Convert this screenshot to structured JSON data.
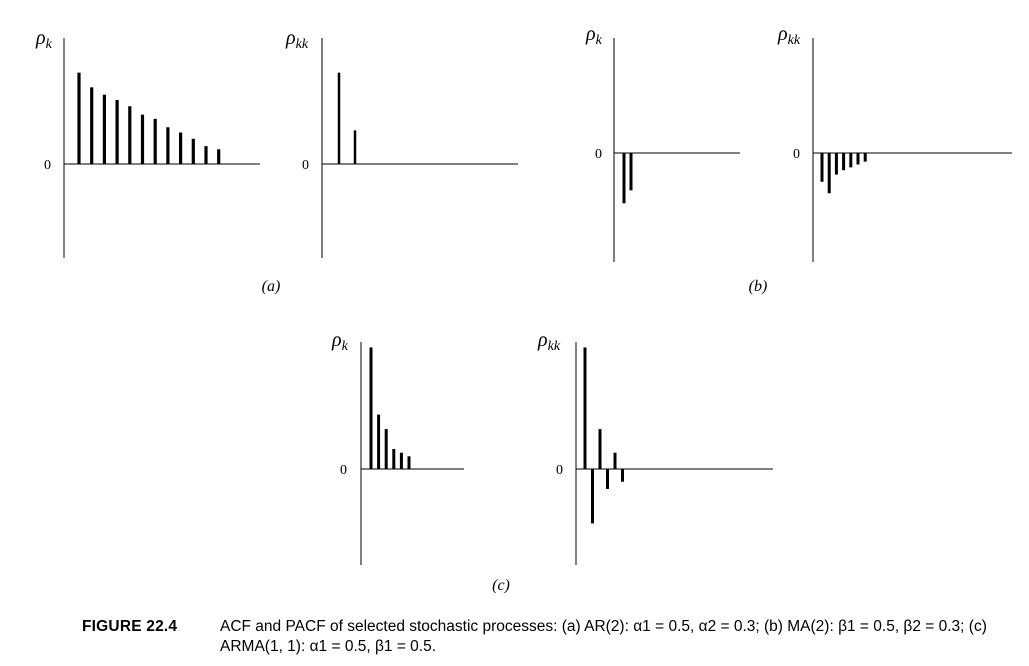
{
  "caption": {
    "label": "FIGURE 22.4",
    "text": "ACF and PACF of selected stochastic processes: (a) AR(2): α1 = 0.5, α2 = 0.3; (b) MA(2): β1 = 0.5, β2 = 0.3; (c) ARMA(1, 1): α1 = 0.5, β1 = 0.5."
  },
  "chart_data": [
    {
      "type": "bar",
      "panel": "(a)",
      "ylabel": "ρk",
      "ytick": "0",
      "ylim": [
        -1,
        1.2
      ],
      "values": [
        0.87,
        0.73,
        0.66,
        0.61,
        0.55,
        0.47,
        0.43,
        0.35,
        0.3,
        0.24,
        0.17,
        0.14
      ]
    },
    {
      "type": "bar",
      "panel": "(a)",
      "ylabel": "ρkk",
      "ytick": "0",
      "ylim": [
        -1,
        1.2
      ],
      "values": [
        0.87,
        0.32
      ]
    },
    {
      "type": "bar",
      "panel": "(b)",
      "ylabel": "ρk",
      "ytick": "0",
      "ylim": [
        -1,
        0.8
      ],
      "values": [
        -0.35,
        -0.26
      ]
    },
    {
      "type": "bar",
      "panel": "(b)",
      "ylabel": "ρkk",
      "ytick": "0",
      "ylim": [
        -1,
        0.8
      ],
      "values": [
        -0.2,
        -0.28,
        -0.15,
        -0.12,
        -0.1,
        -0.08,
        -0.06
      ]
    },
    {
      "type": "bar",
      "panel": "(c)",
      "ylabel": "ρk",
      "ytick": "0",
      "ylim": [
        -1,
        0.7
      ],
      "values": [
        0.67,
        0.3,
        0.22,
        0.11,
        0.09,
        0.07
      ]
    },
    {
      "type": "bar",
      "panel": "(c)",
      "ylabel": "ρkk",
      "ytick": "0",
      "ylim": [
        -1,
        0.7
      ],
      "values": [
        0.67,
        -0.3,
        0.22,
        -0.11,
        0.09,
        -0.07
      ]
    }
  ]
}
